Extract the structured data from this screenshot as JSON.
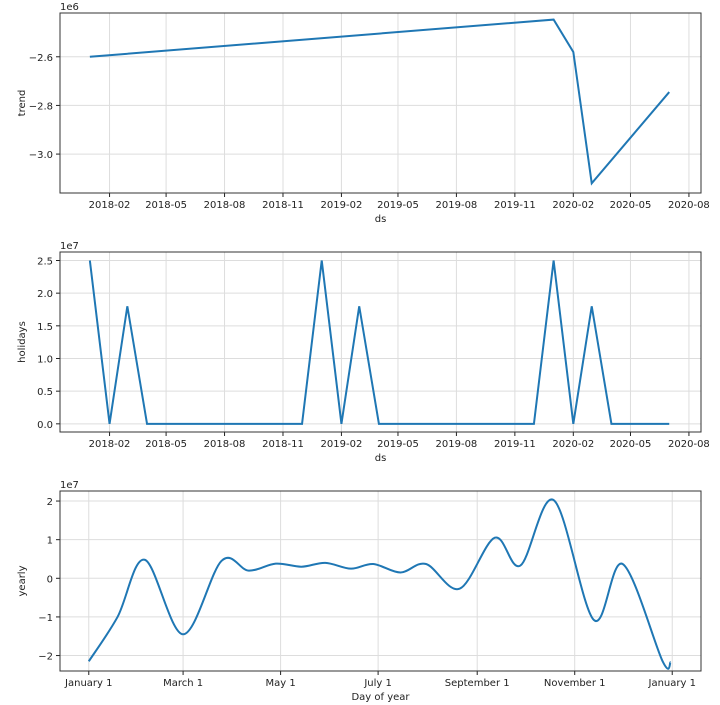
{
  "chart_data": [
    {
      "type": "line",
      "ylabel": "trend",
      "xlabel": "ds",
      "offset_label": "1e6",
      "color": "#1f77b4",
      "grid": true,
      "xticks": [
        "2018-02",
        "2018-05",
        "2018-08",
        "2018-11",
        "2019-02",
        "2019-05",
        "2019-08",
        "2019-11",
        "2020-02",
        "2020-05",
        "2020-08"
      ],
      "yticks": [
        -2.6,
        -2.8,
        -3.0
      ],
      "ylim": [
        -3.16,
        -2.42
      ],
      "xlim": [
        "2017-11-15",
        "2020-08-20"
      ],
      "x": [
        "2018-01-01",
        "2020-01-01",
        "2020-02-01",
        "2020-03-01",
        "2020-07-01"
      ],
      "y": [
        -2.6,
        -2.447,
        -2.58,
        -3.12,
        -2.745
      ]
    },
    {
      "type": "line",
      "ylabel": "holidays",
      "xlabel": "ds",
      "offset_label": "1e7",
      "color": "#1f77b4",
      "grid": true,
      "xticks": [
        "2018-02",
        "2018-05",
        "2018-08",
        "2018-11",
        "2019-02",
        "2019-05",
        "2019-08",
        "2019-11",
        "2020-02",
        "2020-05",
        "2020-08"
      ],
      "yticks": [
        0.0,
        0.5,
        1.0,
        1.5,
        2.0,
        2.5
      ],
      "ylim": [
        -0.125,
        2.63
      ],
      "xlim": [
        "2017-11-15",
        "2020-08-20"
      ],
      "x": [
        "2018-01-01",
        "2018-02-01",
        "2018-03-01",
        "2018-04-01",
        "2018-12-01",
        "2019-01-01",
        "2019-02-01",
        "2019-03-01",
        "2019-04-01",
        "2019-12-01",
        "2020-01-01",
        "2020-02-01",
        "2020-03-01",
        "2020-04-01",
        "2020-07-01"
      ],
      "y": [
        2.5,
        0,
        1.8,
        0,
        0,
        2.5,
        0,
        1.8,
        0,
        0,
        2.5,
        0,
        1.8,
        0,
        0
      ]
    },
    {
      "type": "line",
      "ylabel": "yearly",
      "xlabel": "Day of year",
      "offset_label": "1e7",
      "color": "#1f77b4",
      "grid": true,
      "xticks": [
        "January 1",
        "March 1",
        "May 1",
        "July 1",
        "September 1",
        "November 1",
        "January 1"
      ],
      "xtick_days": [
        0,
        59,
        120,
        181,
        243,
        304,
        365
      ],
      "yticks": [
        2,
        1,
        0,
        -1,
        -2
      ],
      "ylim": [
        -2.4,
        2.26
      ],
      "xlim": [
        -18,
        383
      ],
      "x": [
        0,
        18,
        35,
        59,
        83,
        100,
        117,
        133,
        148,
        164,
        178,
        195,
        211,
        232,
        254,
        270,
        291,
        316,
        334,
        359,
        364
      ],
      "y": [
        -2.15,
        -1.0,
        0.48,
        -1.45,
        0.45,
        0.2,
        0.38,
        0.3,
        0.4,
        0.25,
        0.37,
        0.15,
        0.37,
        -0.27,
        1.05,
        0.33,
        2.02,
        -1.08,
        0.37,
        -2.15,
        -2.17
      ]
    }
  ]
}
